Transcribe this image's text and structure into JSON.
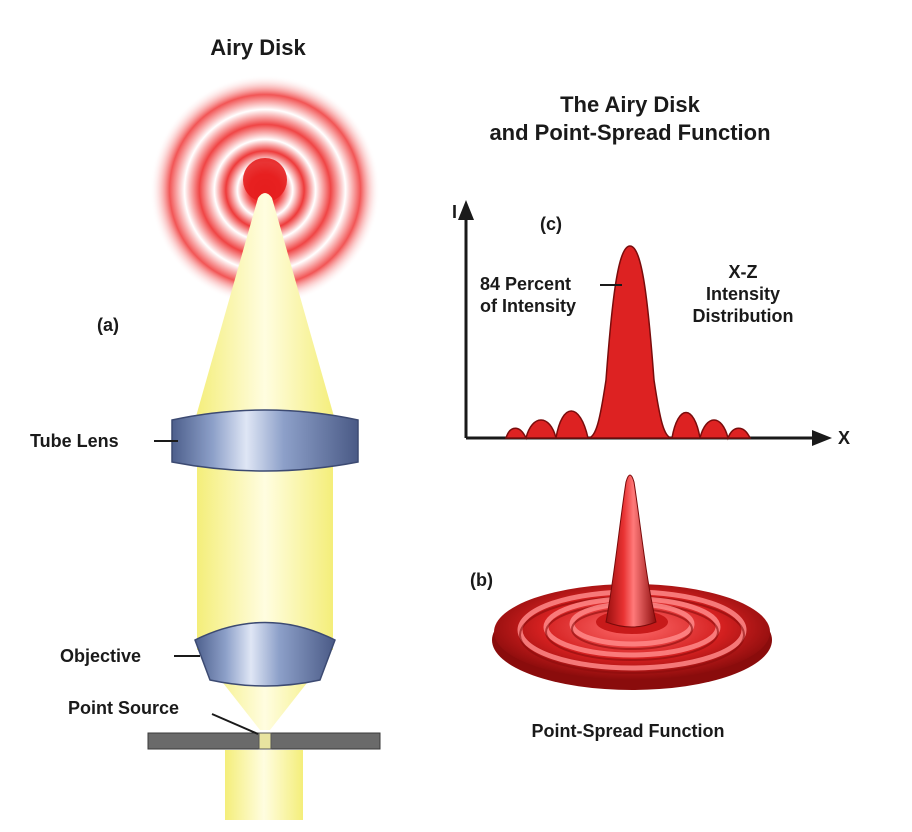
{
  "labels": {
    "airy_disk": "Airy Disk",
    "title_line1": "The Airy Disk",
    "title_line2": "and Point-Spread Function",
    "panel_a": "(a)",
    "panel_b": "(b)",
    "panel_c": "(c)",
    "tube_lens": "Tube Lens",
    "objective": "Objective",
    "point_source": "Point Source",
    "axis_y": "I",
    "axis_x": "X",
    "peak_line1": "84 Percent",
    "peak_line2": "of Intensity",
    "dist_line1": "X-Z",
    "dist_line2": "Intensity",
    "dist_line3": "Distribution",
    "psf_caption": "Point-Spread Function"
  },
  "colors": {
    "airy_red": "#e51e1e",
    "beam_yellow": "#fbf7a0",
    "lens_blue": "#6f83b0",
    "psf_red": "#d42020",
    "slide_gray": "#6a6a6a"
  }
}
